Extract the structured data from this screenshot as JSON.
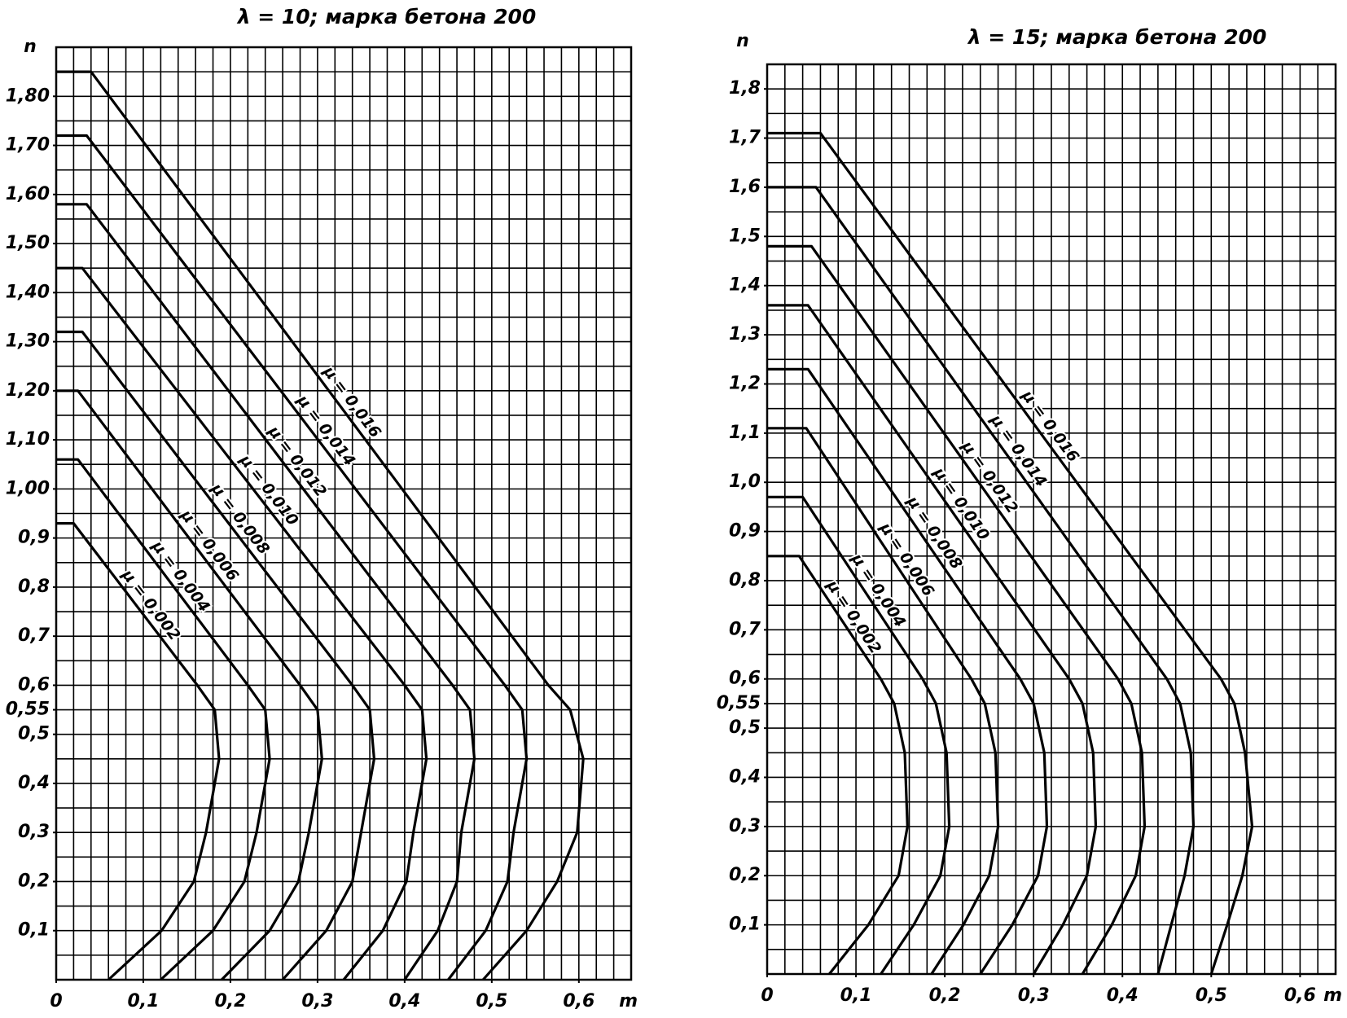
{
  "chart_data": [
    {
      "type": "line",
      "title": "λ = 10; марка бетона 200",
      "xlabel": "m",
      "ylabel": "n",
      "xlim": [
        0,
        0.66
      ],
      "ylim": [
        0,
        1.9
      ],
      "xticks": [
        0,
        {
          "value": 0.1,
          "label": "0,1"
        },
        {
          "value": 0.2,
          "label": "0,2"
        },
        {
          "value": 0.3,
          "label": "0,3"
        },
        {
          "value": 0.4,
          "label": "0,4"
        },
        {
          "value": 0.5,
          "label": "0,5"
        },
        {
          "value": 0.6,
          "label": "0,6"
        }
      ],
      "yticks": [
        {
          "value": 0.1,
          "label": "0,1"
        },
        {
          "value": 0.2,
          "label": "0,2"
        },
        {
          "value": 0.3,
          "label": "0,3"
        },
        {
          "value": 0.4,
          "label": "0,4"
        },
        {
          "value": 0.5,
          "label": "0,5"
        },
        {
          "value": 0.55,
          "label": "0,55"
        },
        {
          "value": 0.6,
          "label": "0,6"
        },
        {
          "value": 0.7,
          "label": "0,7"
        },
        {
          "value": 0.8,
          "label": "0,8"
        },
        {
          "value": 0.9,
          "label": "0,9"
        },
        {
          "value": 1.0,
          "label": "1,00"
        },
        {
          "value": 1.1,
          "label": "1,10"
        },
        {
          "value": 1.2,
          "label": "1,20"
        },
        {
          "value": 1.3,
          "label": "1,30"
        },
        {
          "value": 1.4,
          "label": "1,40"
        },
        {
          "value": 1.5,
          "label": "1,50"
        },
        {
          "value": 1.6,
          "label": "1,60"
        },
        {
          "value": 1.7,
          "label": "1,70"
        },
        {
          "value": 1.8,
          "label": "1,80"
        }
      ],
      "grid": {
        "x_step": 0.02,
        "y_step": 0.05
      },
      "color": "#000000",
      "series": [
        {
          "name": "μ = 0,002",
          "x": [
            0,
            0.02,
            0.162,
            0.182,
            0.187,
            0.172,
            0.158,
            0.121,
            0.06
          ],
          "values": [
            0.93,
            0.93,
            0.6,
            0.55,
            0.45,
            0.3,
            0.2,
            0.1,
            0
          ]
        },
        {
          "name": "μ = 0,004",
          "x": [
            0,
            0.025,
            0.22,
            0.24,
            0.245,
            0.23,
            0.216,
            0.18,
            0.12
          ],
          "values": [
            1.06,
            1.06,
            0.6,
            0.55,
            0.45,
            0.3,
            0.2,
            0.1,
            0
          ]
        },
        {
          "name": "μ = 0,006",
          "x": [
            0,
            0.025,
            0.28,
            0.3,
            0.305,
            0.29,
            0.278,
            0.245,
            0.19
          ],
          "values": [
            1.2,
            1.2,
            0.6,
            0.55,
            0.45,
            0.3,
            0.2,
            0.1,
            0
          ]
        },
        {
          "name": "μ = 0,008",
          "x": [
            0,
            0.03,
            0.34,
            0.36,
            0.365,
            0.35,
            0.34,
            0.31,
            0.26
          ],
          "values": [
            1.32,
            1.32,
            0.6,
            0.55,
            0.45,
            0.3,
            0.2,
            0.1,
            0
          ]
        },
        {
          "name": "μ = 0,010",
          "x": [
            0,
            0.03,
            0.4,
            0.42,
            0.425,
            0.41,
            0.402,
            0.375,
            0.33
          ],
          "values": [
            1.45,
            1.45,
            0.6,
            0.55,
            0.45,
            0.3,
            0.2,
            0.1,
            0
          ]
        },
        {
          "name": "μ = 0,012",
          "x": [
            0,
            0.035,
            0.455,
            0.475,
            0.48,
            0.465,
            0.46,
            0.438,
            0.4
          ],
          "values": [
            1.58,
            1.58,
            0.6,
            0.55,
            0.45,
            0.3,
            0.2,
            0.1,
            0
          ]
        },
        {
          "name": "μ = 0,014",
          "x": [
            0,
            0.035,
            0.515,
            0.535,
            0.54,
            0.525,
            0.518,
            0.493,
            0.45
          ],
          "values": [
            1.72,
            1.72,
            0.6,
            0.55,
            0.45,
            0.3,
            0.2,
            0.1,
            0
          ]
        },
        {
          "name": "μ = 0,016",
          "x": [
            0,
            0.04,
            0.565,
            0.59,
            0.605,
            0.598,
            0.575,
            0.54,
            0.49
          ],
          "values": [
            1.85,
            1.85,
            0.6,
            0.55,
            0.45,
            0.3,
            0.2,
            0.1,
            0
          ]
        }
      ]
    },
    {
      "type": "line",
      "title": "λ = 15; марка бетона 200",
      "xlabel": "m",
      "ylabel": "n",
      "xlim": [
        0,
        0.64
      ],
      "ylim": [
        0,
        1.85
      ],
      "xticks": [
        0,
        {
          "value": 0.1,
          "label": "0,1"
        },
        {
          "value": 0.2,
          "label": "0,2"
        },
        {
          "value": 0.3,
          "label": "0,3"
        },
        {
          "value": 0.4,
          "label": "0,4"
        },
        {
          "value": 0.5,
          "label": "0,5"
        },
        {
          "value": 0.6,
          "label": "0,6"
        }
      ],
      "yticks": [
        {
          "value": 0.1,
          "label": "0,1"
        },
        {
          "value": 0.2,
          "label": "0,2"
        },
        {
          "value": 0.3,
          "label": "0,3"
        },
        {
          "value": 0.4,
          "label": "0,4"
        },
        {
          "value": 0.5,
          "label": "0,5"
        },
        {
          "value": 0.55,
          "label": "0,55"
        },
        {
          "value": 0.6,
          "label": "0,6"
        },
        {
          "value": 0.7,
          "label": "0,7"
        },
        {
          "value": 0.8,
          "label": "0,8"
        },
        {
          "value": 0.9,
          "label": "0,9"
        },
        {
          "value": 1.0,
          "label": "1,0"
        },
        {
          "value": 1.1,
          "label": "1,1"
        },
        {
          "value": 1.2,
          "label": "1,2"
        },
        {
          "value": 1.3,
          "label": "1,3"
        },
        {
          "value": 1.4,
          "label": "1,4"
        },
        {
          "value": 1.5,
          "label": "1,5"
        },
        {
          "value": 1.6,
          "label": "1,6"
        },
        {
          "value": 1.7,
          "label": "1,7"
        },
        {
          "value": 1.8,
          "label": "1,8"
        }
      ],
      "grid": {
        "x_step": 0.02,
        "y_step": 0.05
      },
      "color": "#000000",
      "series": [
        {
          "name": "μ = 0,002",
          "x": [
            0,
            0.036,
            0.128,
            0.143,
            0.155,
            0.158,
            0.148,
            0.114,
            0.07
          ],
          "values": [
            0.85,
            0.85,
            0.6,
            0.55,
            0.45,
            0.3,
            0.2,
            0.1,
            0
          ]
        },
        {
          "name": "μ = 0,004",
          "x": [
            0,
            0.04,
            0.175,
            0.19,
            0.202,
            0.205,
            0.195,
            0.165,
            0.128
          ],
          "values": [
            0.97,
            0.97,
            0.6,
            0.55,
            0.45,
            0.3,
            0.2,
            0.1,
            0
          ]
        },
        {
          "name": "μ = 0,006",
          "x": [
            0,
            0.044,
            0.23,
            0.245,
            0.257,
            0.26,
            0.25,
            0.221,
            0.185
          ],
          "values": [
            1.11,
            1.11,
            0.6,
            0.55,
            0.45,
            0.3,
            0.2,
            0.1,
            0
          ]
        },
        {
          "name": "μ = 0,008",
          "x": [
            0,
            0.046,
            0.285,
            0.3,
            0.312,
            0.315,
            0.305,
            0.276,
            0.24
          ],
          "values": [
            1.23,
            1.23,
            0.6,
            0.55,
            0.45,
            0.3,
            0.2,
            0.1,
            0
          ]
        },
        {
          "name": "μ = 0,010",
          "x": [
            0,
            0.046,
            0.34,
            0.355,
            0.367,
            0.37,
            0.36,
            0.333,
            0.3
          ],
          "values": [
            1.36,
            1.36,
            0.6,
            0.55,
            0.45,
            0.3,
            0.2,
            0.1,
            0
          ]
        },
        {
          "name": "μ = 0,012",
          "x": [
            0,
            0.05,
            0.395,
            0.41,
            0.422,
            0.425,
            0.415,
            0.388,
            0.355
          ],
          "values": [
            1.48,
            1.48,
            0.6,
            0.55,
            0.45,
            0.3,
            0.2,
            0.1,
            0
          ]
        },
        {
          "name": "μ = 0,014",
          "x": [
            0,
            0.055,
            0.45,
            0.465,
            0.477,
            0.48,
            0.47,
            0.455,
            0.44
          ],
          "values": [
            1.6,
            1.6,
            0.6,
            0.55,
            0.45,
            0.3,
            0.2,
            0.1,
            0
          ]
        },
        {
          "name": "μ = 0,016",
          "x": [
            0,
            0.06,
            0.511,
            0.526,
            0.538,
            0.546,
            0.535,
            0.518,
            0.5
          ],
          "values": [
            1.71,
            1.71,
            0.6,
            0.55,
            0.45,
            0.3,
            0.2,
            0.1,
            0
          ]
        }
      ]
    }
  ]
}
